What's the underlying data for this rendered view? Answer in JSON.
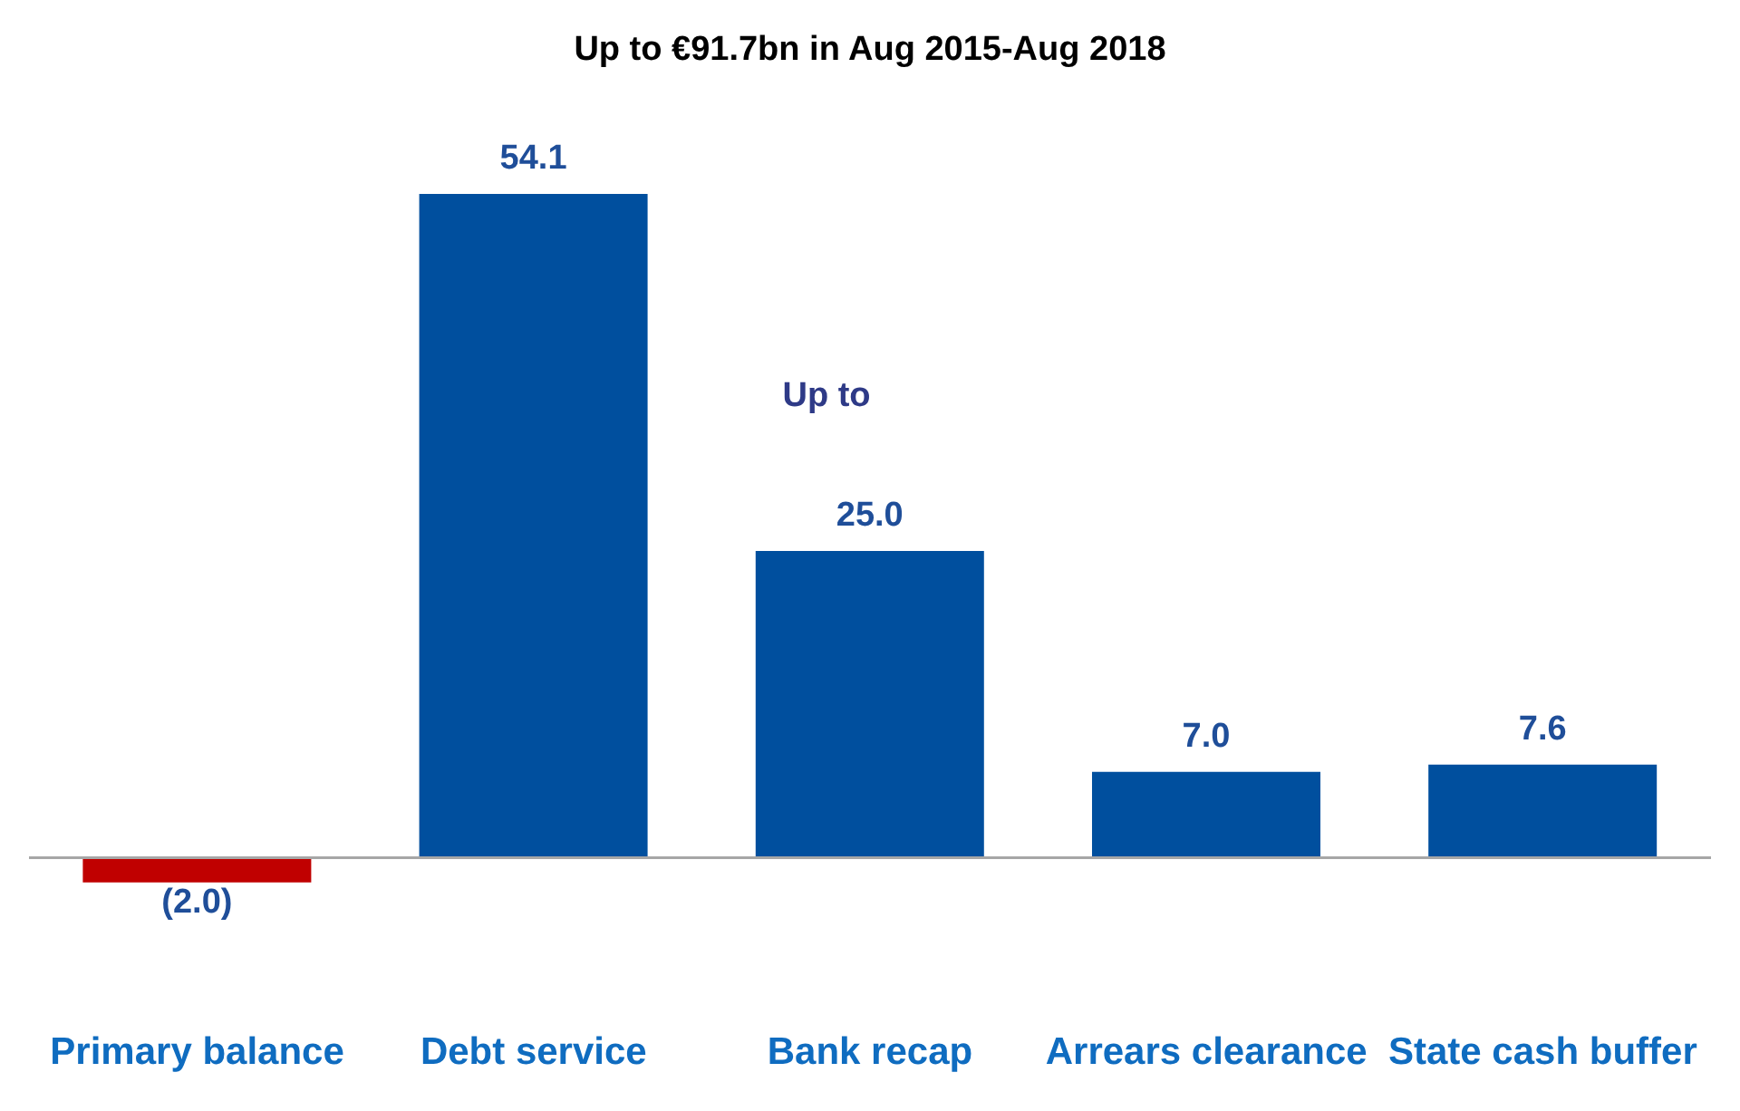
{
  "chart_data": {
    "type": "bar",
    "title": "Up to €91.7bn in Aug 2015-Aug 2018",
    "categories": [
      "Primary balance",
      "Debt service",
      "Bank recap",
      "Arrears clearance",
      "State cash buffer"
    ],
    "values": [
      -2.0,
      54.1,
      25.0,
      7.0,
      7.6
    ],
    "colors": [
      "#c00000",
      "#004f9e",
      "#004f9e",
      "#004f9e",
      "#004f9e"
    ],
    "value_labels": [
      "(2.0)",
      "54.1",
      "25.0",
      "7.0",
      "7.6"
    ],
    "annotations": [
      "Up to"
    ],
    "grid": false,
    "legend": false
  }
}
